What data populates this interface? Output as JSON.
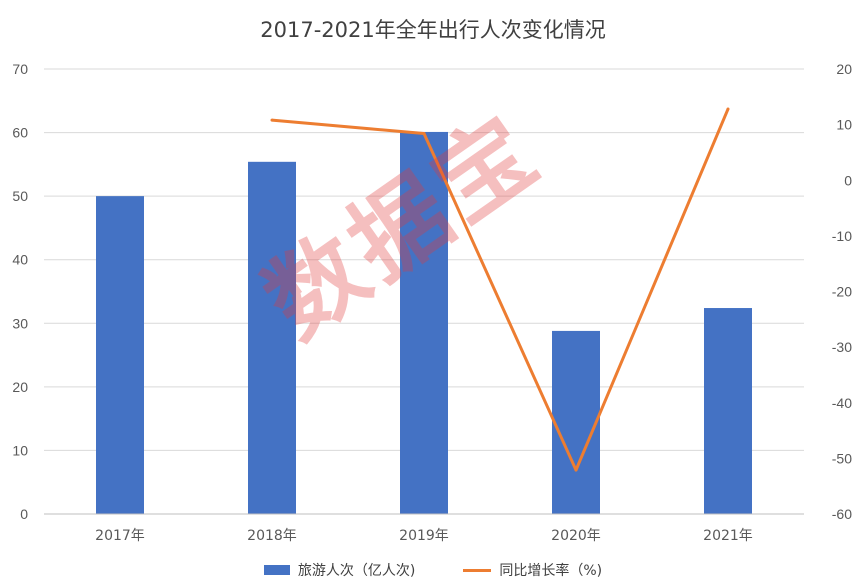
{
  "chart_data": {
    "type": "bar",
    "title": "2017-2021年全年出行人次变化情况",
    "categories": [
      "2017年",
      "2018年",
      "2019年",
      "2020年",
      "2021年"
    ],
    "series": [
      {
        "name": "旅游人次（亿人次)",
        "type": "bar",
        "axis": "left",
        "color": "#4472C4",
        "values": [
          50.0,
          55.4,
          60.1,
          28.8,
          32.4
        ]
      },
      {
        "name": "同比增长率（%)",
        "type": "line",
        "axis": "right",
        "color": "#ED7D31",
        "values": [
          null,
          10.8,
          8.4,
          -52.1,
          12.8
        ]
      }
    ],
    "y_left": {
      "min": 0,
      "max": 70,
      "ticks": [
        "0",
        "10",
        "20",
        "30",
        "40",
        "50",
        "60",
        "70"
      ]
    },
    "y_right": {
      "min": -60,
      "max": 20,
      "ticks": [
        "-60",
        "-50",
        "-40",
        "-30",
        "-20",
        "-10",
        "0",
        "10",
        "20"
      ]
    },
    "grid": true,
    "legend_position": "bottom"
  },
  "watermark": "数据宝"
}
